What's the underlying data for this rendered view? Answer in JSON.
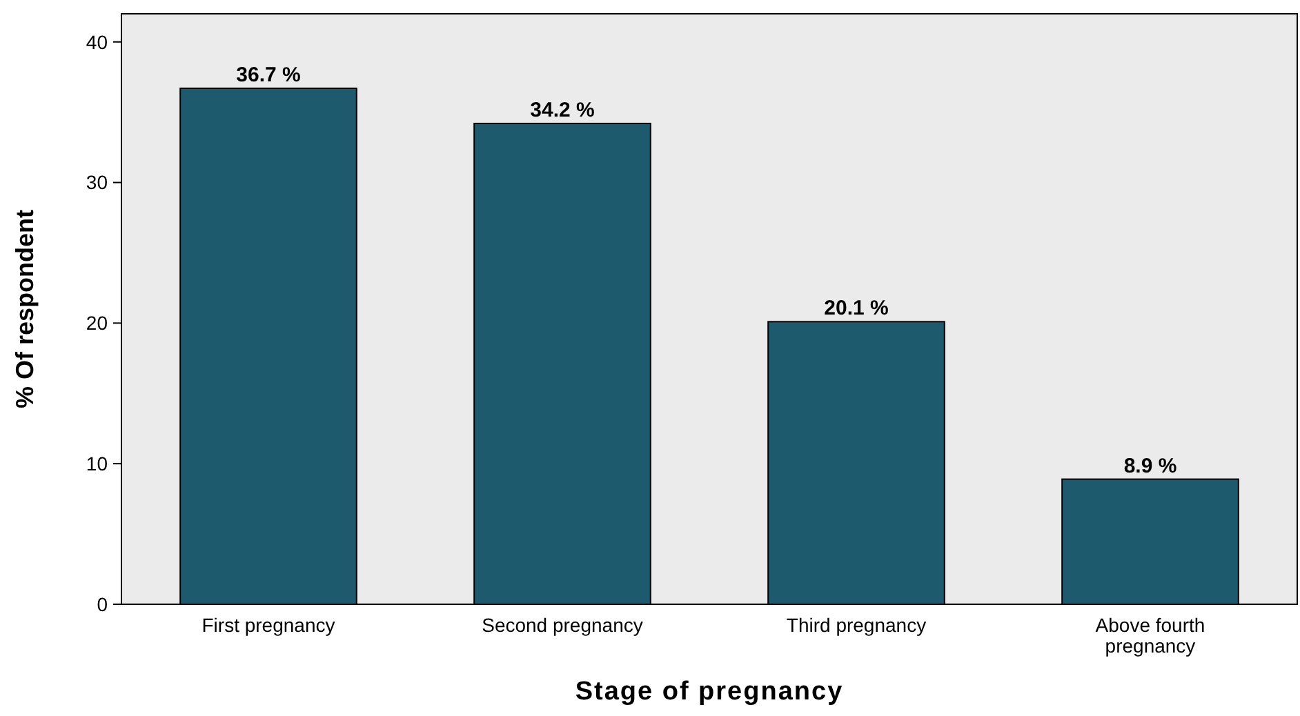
{
  "chart_data": {
    "type": "bar",
    "xlabel": "Stage of pregnancy",
    "ylabel": "% Of respondent",
    "categories": [
      "First pregnancy",
      "Second pregnancy",
      "Third pregnancy",
      "Above fourth pregnancy"
    ],
    "values": [
      36.7,
      34.2,
      20.1,
      8.9
    ],
    "value_labels": [
      "36.7 %",
      "34.2 %",
      "20.1 %",
      "8.9 %"
    ],
    "color": "#1d5a6e",
    "ylim": [
      0,
      42
    ],
    "yticks": [
      0,
      10,
      20,
      30,
      40
    ],
    "grid": false
  }
}
